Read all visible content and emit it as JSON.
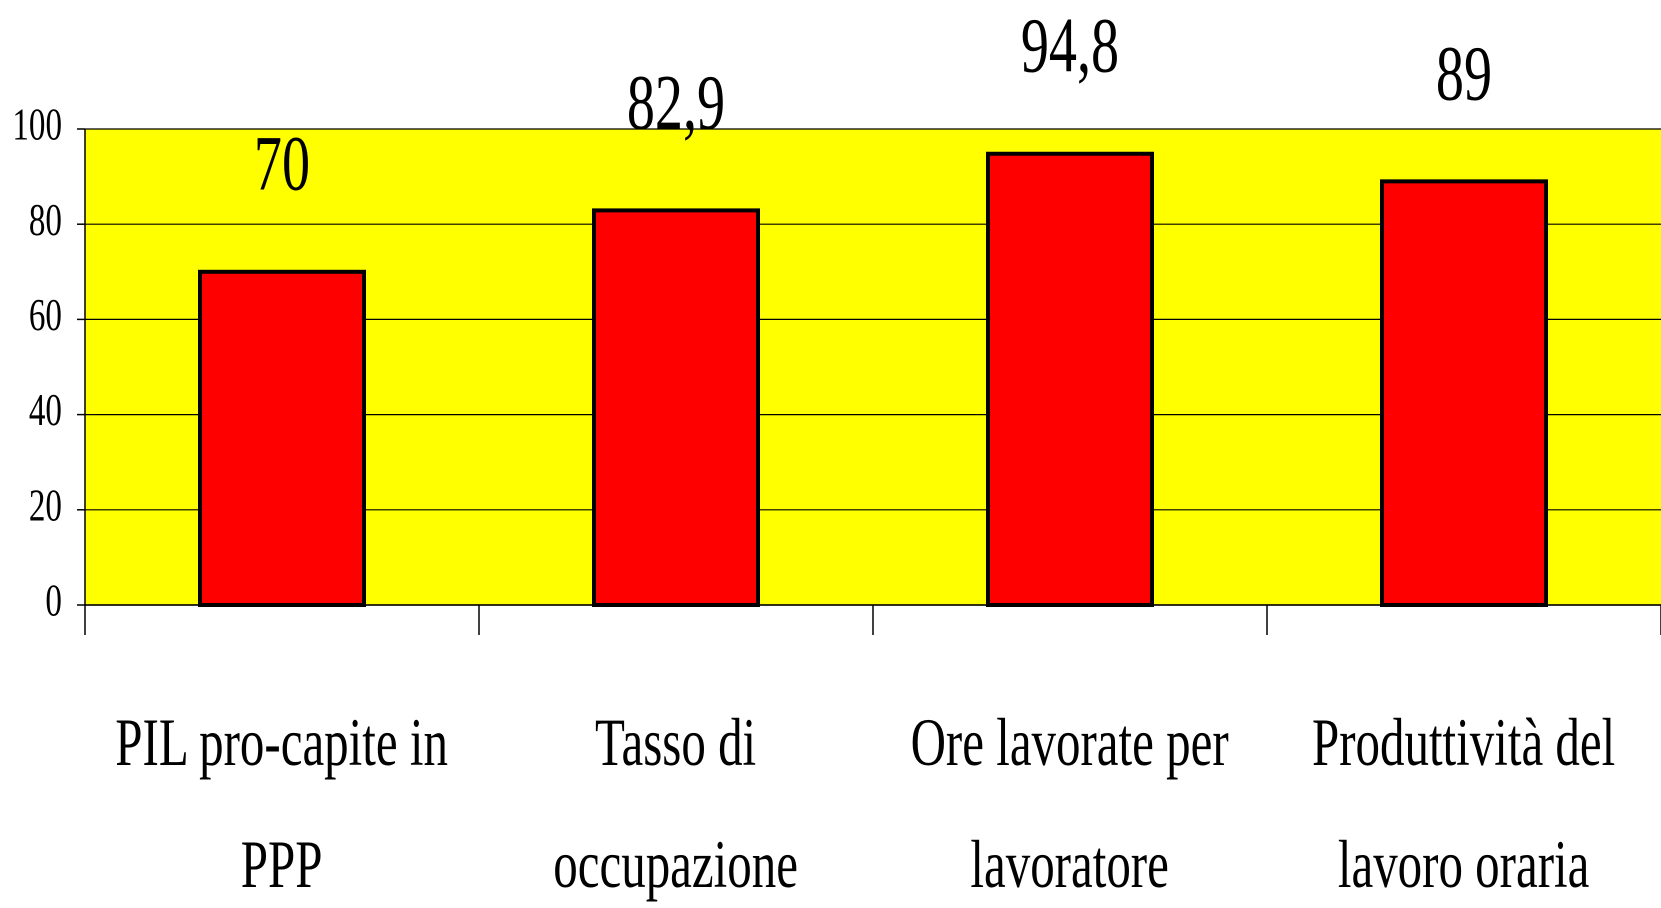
{
  "chart_data": {
    "type": "bar",
    "categories": [
      "PIL pro-capite in PPP",
      "Tasso di occupazione",
      "Ore lavorate per lavoratore",
      "Produttività del lavoro oraria"
    ],
    "values": [
      70,
      82.9,
      94.8,
      89
    ],
    "value_labels": [
      "70",
      "82,9",
      "94,8",
      "89"
    ],
    "color": "#ff0000",
    "background": "#ffff00",
    "ylim": [
      0,
      100
    ],
    "yticks": [
      0,
      20,
      40,
      60,
      80,
      100
    ],
    "grid": true
  }
}
